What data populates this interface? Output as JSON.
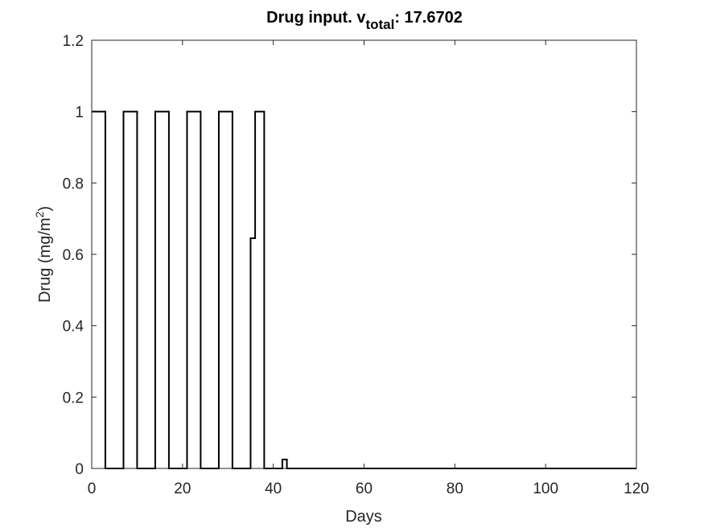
{
  "chart_data": {
    "type": "line",
    "title": {
      "prefix": "Drug input. v",
      "subscript": "total",
      "suffix": ": 17.6702"
    },
    "xlabel": "Days",
    "ylabel": {
      "main": "Drug (mg/m",
      "superscript": "2",
      "close": ")"
    },
    "xlim": [
      0,
      120
    ],
    "ylim": [
      0,
      1.2
    ],
    "xticks": [
      0,
      20,
      40,
      60,
      80,
      100,
      120
    ],
    "yticks": [
      0,
      0.2,
      0.4,
      0.6,
      0.8,
      1,
      1.2
    ],
    "xtick_labels": [
      "0",
      "20",
      "40",
      "60",
      "80",
      "100",
      "120"
    ],
    "ytick_labels": [
      "0",
      "0.2",
      "0.4",
      "0.6",
      "0.8",
      "1",
      "1.2"
    ],
    "grid": false,
    "line_color": "#000000",
    "series": [
      {
        "step": "post",
        "x": [
          0,
          3,
          7,
          10,
          14,
          17,
          21,
          24,
          28,
          31,
          35,
          36,
          38,
          42,
          43,
          120
        ],
        "y": [
          1,
          0,
          1,
          0,
          1,
          0,
          1,
          0,
          1,
          0,
          0.645,
          1,
          0,
          0.025,
          0,
          0
        ]
      }
    ]
  }
}
